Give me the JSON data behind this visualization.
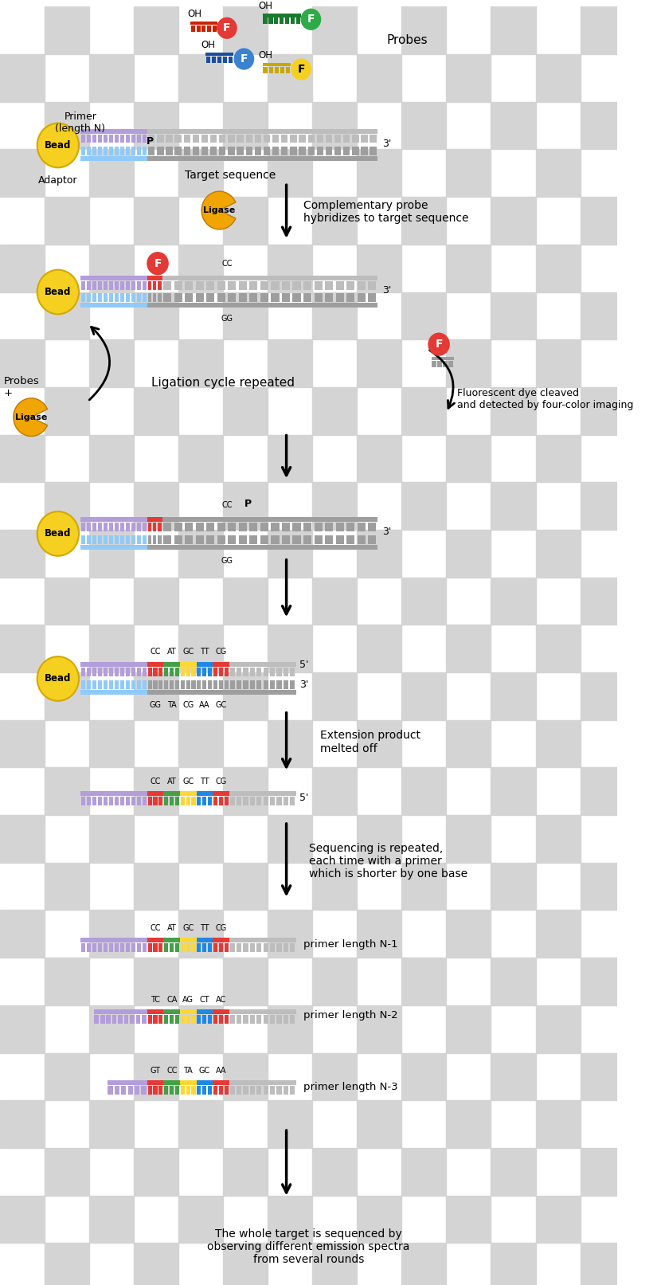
{
  "checker_color": "#d4d4d4",
  "checker_size": 60,
  "bead_color": "#f5d020",
  "bead_edge": "#d4a800",
  "ligase_color": "#f0a500",
  "probe_red": "#e8352a",
  "probe_green": "#2eab47",
  "probe_blue": "#3b82d0",
  "probe_yellow": "#f5d020",
  "dna_purple": "#b39ddb",
  "dna_blue": "#90caf9",
  "dna_gray": "#bdbdbd",
  "dna_darkgray": "#9e9e9e",
  "seg_red": "#e53935",
  "seg_green": "#43a047",
  "seg_yellow": "#fdd835",
  "seg_blue": "#1e88e5",
  "seg_orange": "#fb8c00",
  "seg_teal": "#00897b",
  "top_labels_1": [
    "CC",
    "AT",
    "GC",
    "TT",
    "CG"
  ],
  "bot_labels_1": [
    "GG",
    "TA",
    "CG",
    "AA",
    "GC"
  ],
  "top_labels_2": [
    "TC",
    "CA",
    "AG",
    "CT",
    "AC"
  ],
  "top_labels_3": [
    "GT",
    "CC",
    "TA",
    "GC",
    "AA"
  ],
  "seg_colors_1": [
    "#e53935",
    "#43a047",
    "#fdd835",
    "#1e88e5",
    "#e53935"
  ],
  "seg_colors_2": [
    "#e53935",
    "#43a047",
    "#fdd835",
    "#1e88e5",
    "#e53935"
  ],
  "seg_colors_3": [
    "#e53935",
    "#43a047",
    "#fdd835",
    "#1e88e5",
    "#e53935"
  ]
}
